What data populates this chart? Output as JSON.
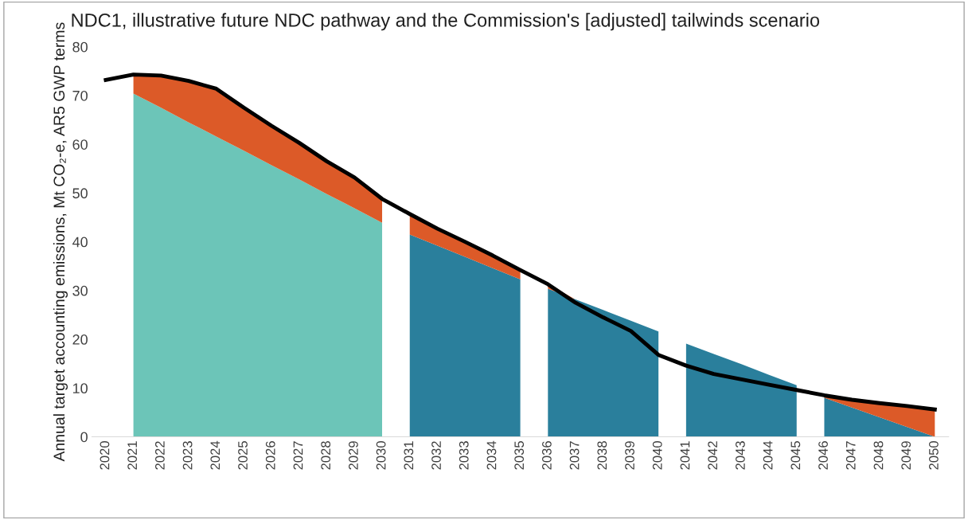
{
  "chart_data": {
    "type": "area",
    "stacked": true,
    "title": "NDC1, illustrative future NDC pathway and the Commission's [adjusted] tailwinds scenario",
    "ylabel": "Annual target accounting emissions, Mt CO₂-e, AR5 GWP terms",
    "categories": [
      "2020",
      "2021",
      "2022",
      "2023",
      "2024",
      "2025",
      "2026",
      "2027",
      "2028",
      "2029",
      "2030",
      "2031",
      "2032",
      "2033",
      "2034",
      "2035",
      "2036",
      "2037",
      "2038",
      "2039",
      "2040",
      "2041",
      "2042",
      "2043",
      "2044",
      "2045",
      "2046",
      "2047",
      "2048",
      "2049",
      "2050"
    ],
    "ylim": [
      0,
      80
    ],
    "yticks": [
      0,
      10,
      20,
      30,
      40,
      50,
      60,
      70,
      80
    ],
    "grid": false,
    "legend": false,
    "series": [
      {
        "color": "#6cc5b8",
        "values": [
          null,
          70.4,
          67.5,
          64.5,
          61.6,
          58.7,
          55.7,
          52.8,
          49.8,
          46.9,
          43.9,
          null,
          null,
          null,
          null,
          null,
          null,
          null,
          null,
          null,
          null,
          null,
          null,
          null,
          null,
          null,
          null,
          null,
          null,
          null,
          null
        ]
      },
      {
        "color": "#2a7f9c",
        "values": [
          null,
          null,
          null,
          null,
          null,
          null,
          null,
          null,
          null,
          null,
          null,
          41.5,
          39.2,
          36.9,
          34.6,
          32.3,
          null,
          null,
          null,
          null,
          null,
          null,
          null,
          null,
          null,
          null,
          null,
          null,
          null,
          null,
          null
        ]
      },
      {
        "color": "#2a7f9c",
        "values": [
          null,
          null,
          null,
          null,
          null,
          null,
          null,
          null,
          null,
          null,
          null,
          null,
          null,
          null,
          null,
          null,
          30.4,
          28.2,
          26.0,
          23.8,
          21.6,
          null,
          null,
          null,
          null,
          null,
          null,
          null,
          null,
          null,
          null
        ]
      },
      {
        "color": "#2a7f9c",
        "values": [
          null,
          null,
          null,
          null,
          null,
          null,
          null,
          null,
          null,
          null,
          null,
          null,
          null,
          null,
          null,
          null,
          null,
          null,
          null,
          null,
          null,
          19.1,
          17.0,
          14.9,
          12.7,
          10.6,
          null,
          null,
          null,
          null,
          null
        ]
      },
      {
        "color": "#2a7f9c",
        "values": [
          null,
          null,
          null,
          null,
          null,
          null,
          null,
          null,
          null,
          null,
          null,
          null,
          null,
          null,
          null,
          null,
          null,
          null,
          null,
          null,
          null,
          null,
          null,
          null,
          null,
          null,
          8.0,
          6.0,
          4.0,
          2.0,
          0.0
        ]
      },
      {
        "color": "#dc5a28",
        "values": [
          null,
          3.9,
          6.6,
          8.5,
          9.8,
          8.8,
          8.1,
          7.5,
          6.7,
          6.3,
          4.9,
          4.2,
          3.5,
          3.1,
          2.6,
          1.9,
          0.9,
          0,
          null,
          null,
          null,
          null,
          null,
          null,
          null,
          null,
          0.3,
          1.6,
          2.9,
          4.3,
          5.6
        ]
      },
      {
        "type": "line",
        "color": "#000000",
        "values": [
          73.2,
          74.3,
          74.1,
          73.0,
          71.4,
          67.5,
          63.8,
          60.3,
          56.5,
          53.2,
          48.8,
          45.7,
          42.7,
          40.0,
          37.2,
          34.2,
          31.3,
          27.5,
          24.5,
          21.7,
          16.8,
          14.6,
          12.9,
          11.8,
          10.7,
          9.6,
          8.5,
          7.6,
          6.9,
          6.3,
          5.6
        ]
      }
    ]
  }
}
